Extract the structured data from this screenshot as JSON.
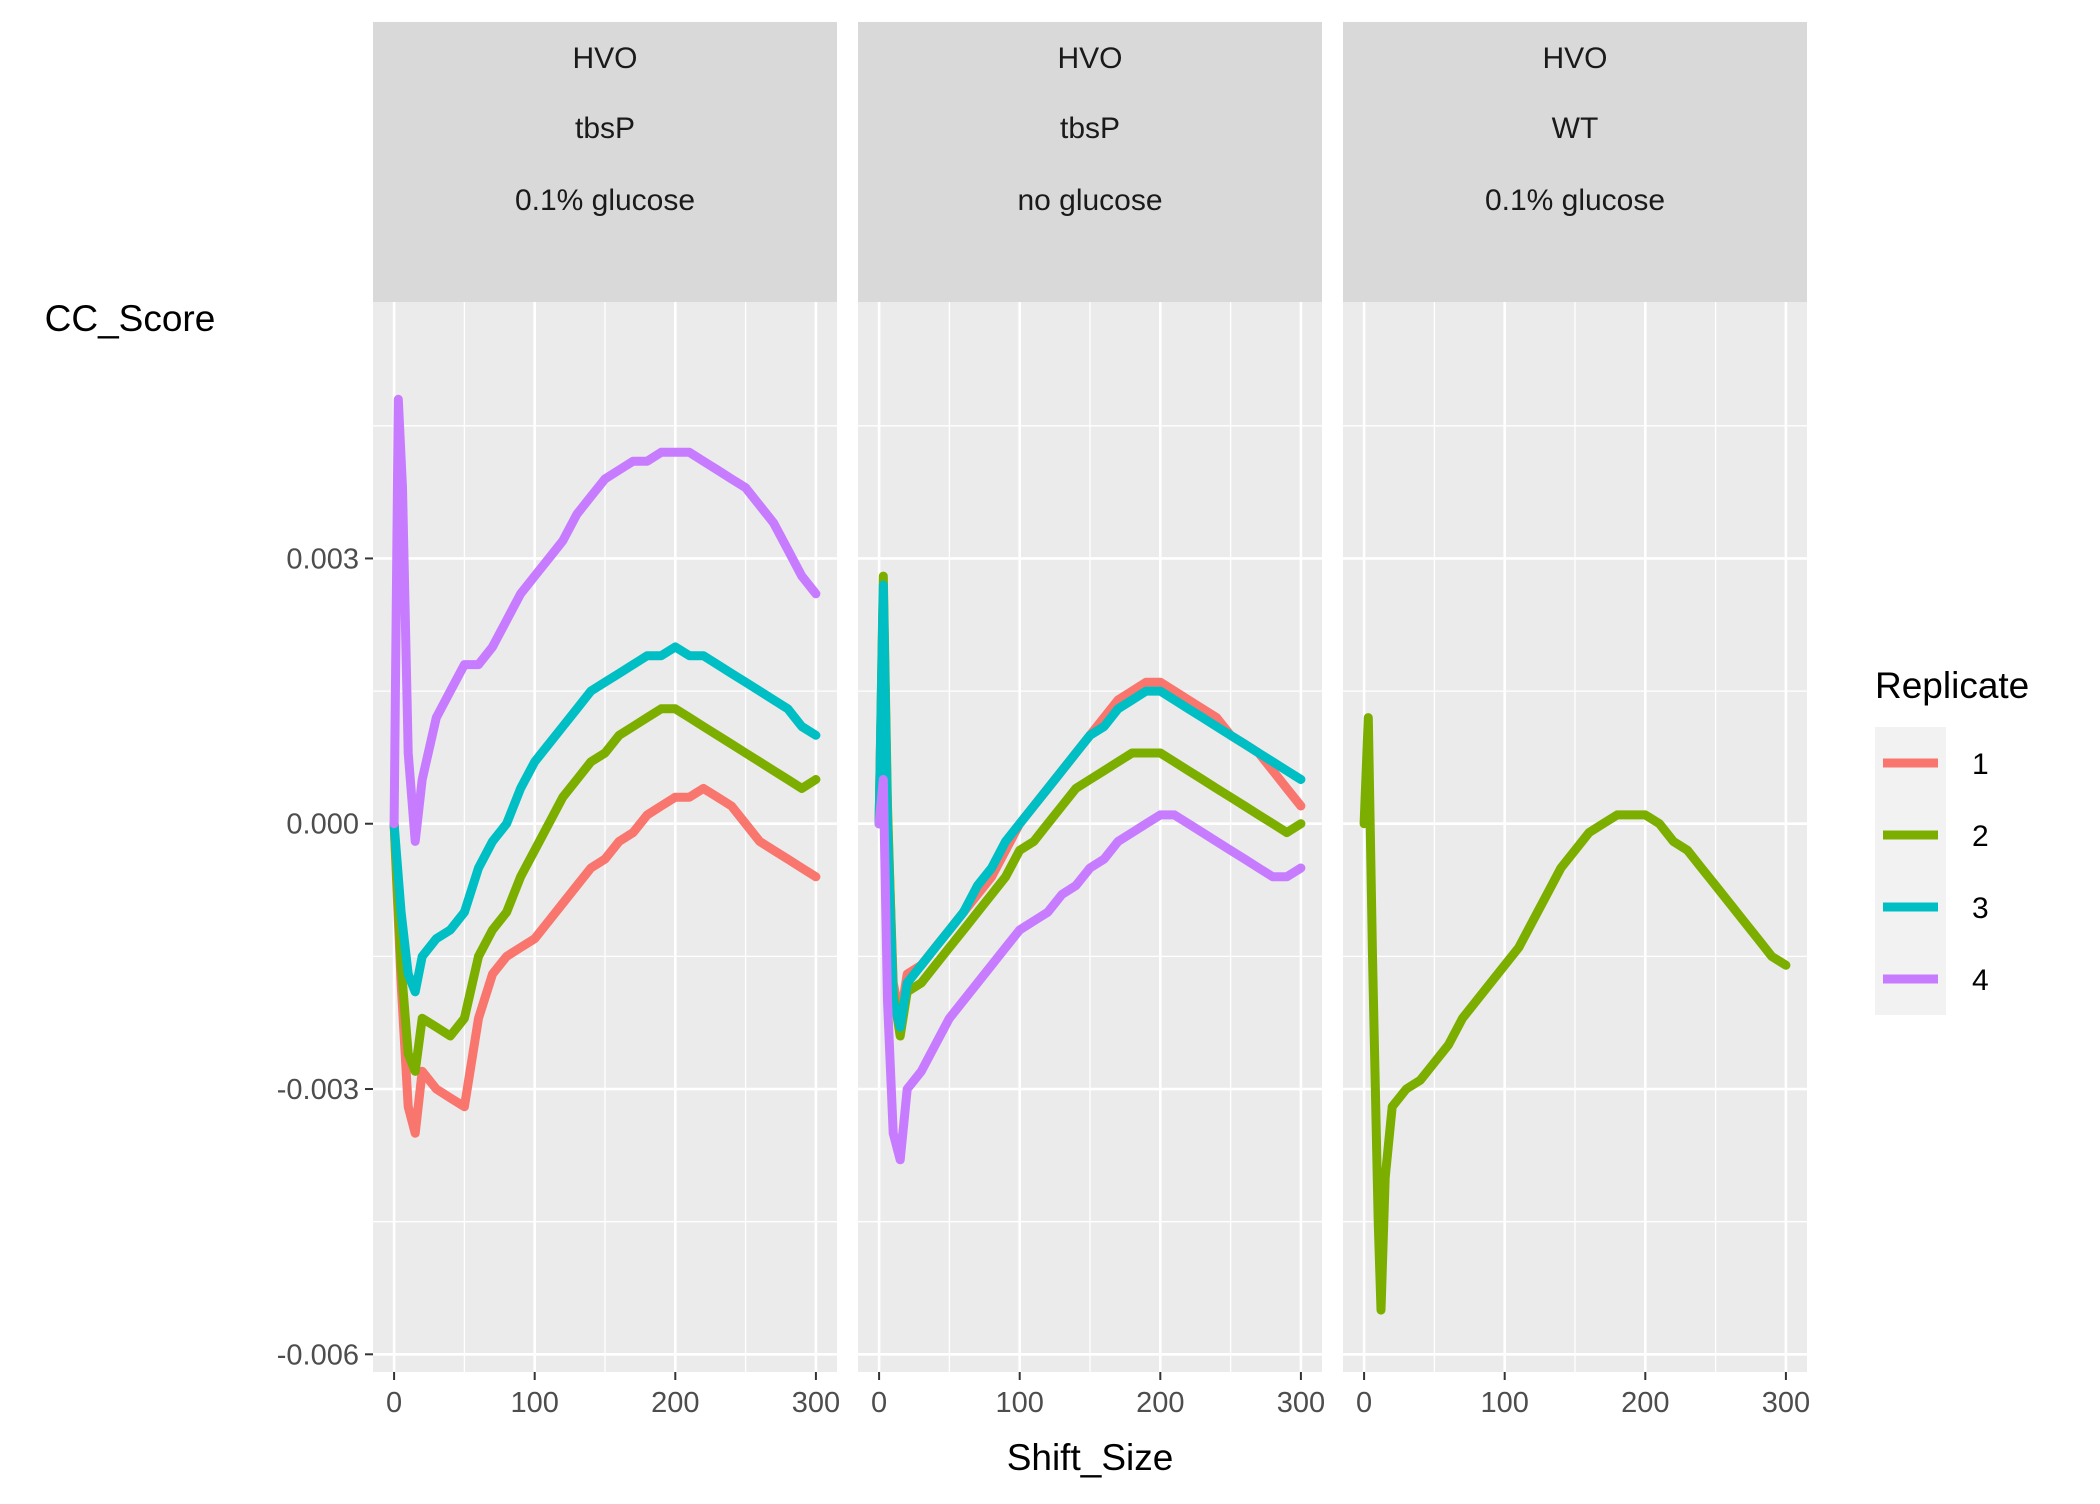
{
  "chart_data": {
    "type": "line",
    "xlabel": "Shift_Size",
    "ylabel": "CC_Score",
    "xlim": [
      -15,
      315
    ],
    "ylim": [
      -0.0062,
      0.0059
    ],
    "x_ticks": [
      0,
      100,
      200,
      300
    ],
    "x_tick_labels": [
      "0",
      "100",
      "200",
      "300"
    ],
    "y_ticks": [
      -0.006,
      -0.003,
      0.0,
      0.003
    ],
    "y_tick_labels": [
      "-0.006",
      "-0.003",
      "0.000",
      "0.003"
    ],
    "grid": true,
    "legend": {
      "title": "Replicate",
      "position": "right",
      "entries": [
        {
          "label": "1",
          "color": "#F8766D"
        },
        {
          "label": "2",
          "color": "#7CAE00"
        },
        {
          "label": "3",
          "color": "#00BFC4"
        },
        {
          "label": "4",
          "color": "#C77CFF"
        }
      ]
    },
    "facets": [
      {
        "strip": [
          "HVO",
          "tbsP",
          "0.1% glucose"
        ],
        "series": [
          {
            "name": "1",
            "color": "#F8766D",
            "x": [
              0,
              5,
              10,
              15,
              20,
              30,
              40,
              50,
              60,
              70,
              80,
              90,
              100,
              110,
              120,
              130,
              140,
              150,
              160,
              170,
              180,
              190,
              200,
              210,
              220,
              230,
              240,
              250,
              260,
              270,
              280,
              290,
              300
            ],
            "y": [
              0,
              -0.0018,
              -0.0032,
              -0.0035,
              -0.0028,
              -0.003,
              -0.0031,
              -0.0032,
              -0.0022,
              -0.0017,
              -0.0015,
              -0.0014,
              -0.0013,
              -0.0011,
              -0.0009,
              -0.0007,
              -0.0005,
              -0.0004,
              -0.0002,
              -0.0001,
              0.0001,
              0.0002,
              0.0003,
              0.0003,
              0.0004,
              0.0003,
              0.0002,
              0.0,
              -0.0002,
              -0.0003,
              -0.0004,
              -0.0005,
              -0.0006
            ]
          },
          {
            "name": "2",
            "color": "#7CAE00",
            "x": [
              0,
              5,
              10,
              15,
              20,
              30,
              40,
              50,
              60,
              70,
              80,
              90,
              100,
              110,
              120,
              130,
              140,
              150,
              160,
              170,
              180,
              190,
              200,
              210,
              220,
              230,
              240,
              250,
              260,
              270,
              280,
              290,
              300
            ],
            "y": [
              0,
              -0.0016,
              -0.0026,
              -0.0028,
              -0.0022,
              -0.0023,
              -0.0024,
              -0.0022,
              -0.0015,
              -0.0012,
              -0.001,
              -0.0006,
              -0.0003,
              0.0,
              0.0003,
              0.0005,
              0.0007,
              0.0008,
              0.001,
              0.0011,
              0.0012,
              0.0013,
              0.0013,
              0.0012,
              0.0011,
              0.001,
              0.0009,
              0.0008,
              0.0007,
              0.0006,
              0.0005,
              0.0004,
              0.0005
            ]
          },
          {
            "name": "3",
            "color": "#00BFC4",
            "x": [
              0,
              5,
              10,
              15,
              20,
              30,
              40,
              50,
              60,
              70,
              80,
              90,
              100,
              110,
              120,
              130,
              140,
              150,
              160,
              170,
              180,
              190,
              200,
              210,
              220,
              230,
              240,
              250,
              260,
              270,
              280,
              290,
              300
            ],
            "y": [
              0,
              -0.001,
              -0.0017,
              -0.0019,
              -0.0015,
              -0.0013,
              -0.0012,
              -0.001,
              -0.0005,
              -0.0002,
              0.0,
              0.0004,
              0.0007,
              0.0009,
              0.0011,
              0.0013,
              0.0015,
              0.0016,
              0.0017,
              0.0018,
              0.0019,
              0.0019,
              0.002,
              0.0019,
              0.0019,
              0.0018,
              0.0017,
              0.0016,
              0.0015,
              0.0014,
              0.0013,
              0.0011,
              0.001
            ]
          },
          {
            "name": "4",
            "color": "#C77CFF",
            "x": [
              0,
              3,
              6,
              10,
              15,
              20,
              30,
              40,
              50,
              60,
              70,
              80,
              90,
              100,
              110,
              120,
              130,
              140,
              150,
              160,
              170,
              180,
              190,
              200,
              210,
              220,
              230,
              240,
              250,
              260,
              270,
              280,
              290,
              300
            ],
            "y": [
              0,
              0.0048,
              0.0038,
              0.0008,
              -0.0002,
              0.0005,
              0.0012,
              0.0015,
              0.0018,
              0.0018,
              0.002,
              0.0023,
              0.0026,
              0.0028,
              0.003,
              0.0032,
              0.0035,
              0.0037,
              0.0039,
              0.004,
              0.0041,
              0.0041,
              0.0042,
              0.0042,
              0.0042,
              0.0041,
              0.004,
              0.0039,
              0.0038,
              0.0036,
              0.0034,
              0.0031,
              0.0028,
              0.0026
            ]
          }
        ]
      },
      {
        "strip": [
          "HVO",
          "tbsP",
          "no glucose"
        ],
        "series": [
          {
            "name": "1",
            "color": "#F8766D",
            "x": [
              0,
              3,
              6,
              10,
              15,
              20,
              30,
              40,
              50,
              60,
              70,
              80,
              90,
              100,
              110,
              120,
              130,
              140,
              150,
              160,
              170,
              180,
              190,
              200,
              210,
              220,
              230,
              240,
              250,
              260,
              270,
              280,
              290,
              300
            ],
            "y": [
              0,
              0.0026,
              0.0001,
              -0.0018,
              -0.0022,
              -0.0017,
              -0.0016,
              -0.0014,
              -0.0012,
              -0.001,
              -0.0008,
              -0.0006,
              -0.0003,
              0.0,
              0.0002,
              0.0004,
              0.0006,
              0.0008,
              0.001,
              0.0012,
              0.0014,
              0.0015,
              0.0016,
              0.0016,
              0.0015,
              0.0014,
              0.0013,
              0.0012,
              0.001,
              0.0009,
              0.0008,
              0.0006,
              0.0004,
              0.0002
            ]
          },
          {
            "name": "2",
            "color": "#7CAE00",
            "x": [
              0,
              3,
              6,
              10,
              15,
              20,
              30,
              40,
              50,
              60,
              70,
              80,
              90,
              100,
              110,
              120,
              130,
              140,
              150,
              160,
              170,
              180,
              190,
              200,
              210,
              220,
              230,
              240,
              250,
              260,
              270,
              280,
              290,
              300
            ],
            "y": [
              0,
              0.0028,
              0.0002,
              -0.0019,
              -0.0024,
              -0.0019,
              -0.0018,
              -0.0016,
              -0.0014,
              -0.0012,
              -0.001,
              -0.0008,
              -0.0006,
              -0.0003,
              -0.0002,
              0.0,
              0.0002,
              0.0004,
              0.0005,
              0.0006,
              0.0007,
              0.0008,
              0.0008,
              0.0008,
              0.0007,
              0.0006,
              0.0005,
              0.0004,
              0.0003,
              0.0002,
              0.0001,
              0.0,
              -0.0001,
              0.0
            ]
          },
          {
            "name": "3",
            "color": "#00BFC4",
            "x": [
              0,
              3,
              6,
              10,
              15,
              20,
              30,
              40,
              50,
              60,
              70,
              80,
              90,
              100,
              110,
              120,
              130,
              140,
              150,
              160,
              170,
              180,
              190,
              200,
              210,
              220,
              230,
              240,
              250,
              260,
              270,
              280,
              290,
              300
            ],
            "y": [
              0,
              0.0027,
              0.0,
              -0.002,
              -0.0023,
              -0.0018,
              -0.0016,
              -0.0014,
              -0.0012,
              -0.001,
              -0.0007,
              -0.0005,
              -0.0002,
              0.0,
              0.0002,
              0.0004,
              0.0006,
              0.0008,
              0.001,
              0.0011,
              0.0013,
              0.0014,
              0.0015,
              0.0015,
              0.0014,
              0.0013,
              0.0012,
              0.0011,
              0.001,
              0.0009,
              0.0008,
              0.0007,
              0.0006,
              0.0005
            ]
          },
          {
            "name": "4",
            "color": "#C77CFF",
            "x": [
              0,
              3,
              6,
              10,
              15,
              20,
              30,
              40,
              50,
              60,
              70,
              80,
              90,
              100,
              110,
              120,
              130,
              140,
              150,
              160,
              170,
              180,
              190,
              200,
              210,
              220,
              230,
              240,
              250,
              260,
              270,
              280,
              290,
              300
            ],
            "y": [
              0,
              0.0005,
              -0.002,
              -0.0035,
              -0.0038,
              -0.003,
              -0.0028,
              -0.0025,
              -0.0022,
              -0.002,
              -0.0018,
              -0.0016,
              -0.0014,
              -0.0012,
              -0.0011,
              -0.001,
              -0.0008,
              -0.0007,
              -0.0005,
              -0.0004,
              -0.0002,
              -0.0001,
              0.0,
              0.0001,
              0.0001,
              0.0,
              -0.0001,
              -0.0002,
              -0.0003,
              -0.0004,
              -0.0005,
              -0.0006,
              -0.0006,
              -0.0005
            ]
          }
        ]
      },
      {
        "strip": [
          "HVO",
          "WT",
          "0.1% glucose"
        ],
        "series": [
          {
            "name": "2",
            "color": "#7CAE00",
            "x": [
              0,
              3,
              6,
              10,
              12,
              15,
              20,
              30,
              40,
              50,
              60,
              70,
              80,
              90,
              100,
              110,
              120,
              130,
              140,
              150,
              160,
              170,
              180,
              190,
              200,
              210,
              220,
              230,
              240,
              250,
              260,
              270,
              280,
              290,
              300
            ],
            "y": [
              0,
              0.0012,
              -0.0015,
              -0.0045,
              -0.0055,
              -0.004,
              -0.0032,
              -0.003,
              -0.0029,
              -0.0027,
              -0.0025,
              -0.0022,
              -0.002,
              -0.0018,
              -0.0016,
              -0.0014,
              -0.0011,
              -0.0008,
              -0.0005,
              -0.0003,
              -0.0001,
              0.0,
              0.0001,
              0.0001,
              0.0001,
              0.0,
              -0.0002,
              -0.0003,
              -0.0005,
              -0.0007,
              -0.0009,
              -0.0011,
              -0.0013,
              -0.0015,
              -0.0016
            ]
          }
        ]
      }
    ]
  }
}
